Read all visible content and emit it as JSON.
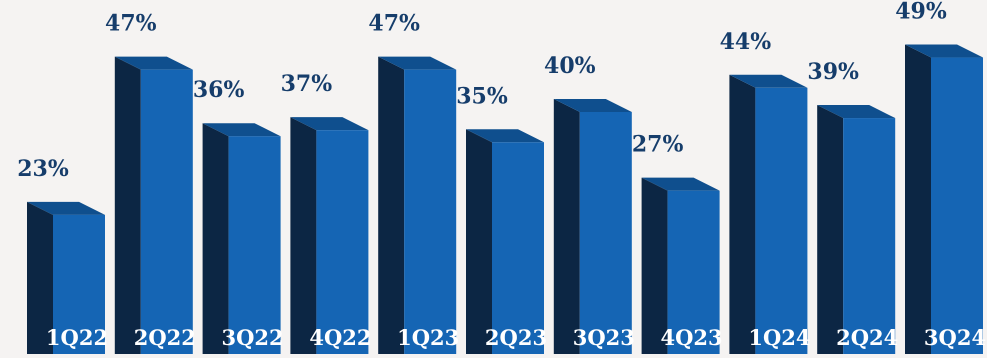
{
  "chart_data": {
    "type": "bar",
    "categories": [
      "1Q22",
      "2Q22",
      "3Q22",
      "4Q22",
      "1Q23",
      "2Q23",
      "3Q23",
      "4Q23",
      "1Q24",
      "2Q24",
      "3Q24"
    ],
    "values": [
      23,
      47,
      36,
      37,
      47,
      35,
      40,
      27,
      44,
      39,
      49
    ],
    "value_labels": [
      "23%",
      "47%",
      "36%",
      "37%",
      "47%",
      "35%",
      "40%",
      "27%",
      "44%",
      "39%",
      "49%"
    ],
    "title": "",
    "xlabel": "",
    "ylabel": "",
    "ylim": [
      0,
      50
    ],
    "style": "3d-bar",
    "colors": {
      "front": "#1565b4",
      "side": "#0c2644",
      "top": "#0f4f8e",
      "value_label": "#163d6b",
      "category_label": "#ffffff",
      "background": "#f5f3f2"
    }
  }
}
